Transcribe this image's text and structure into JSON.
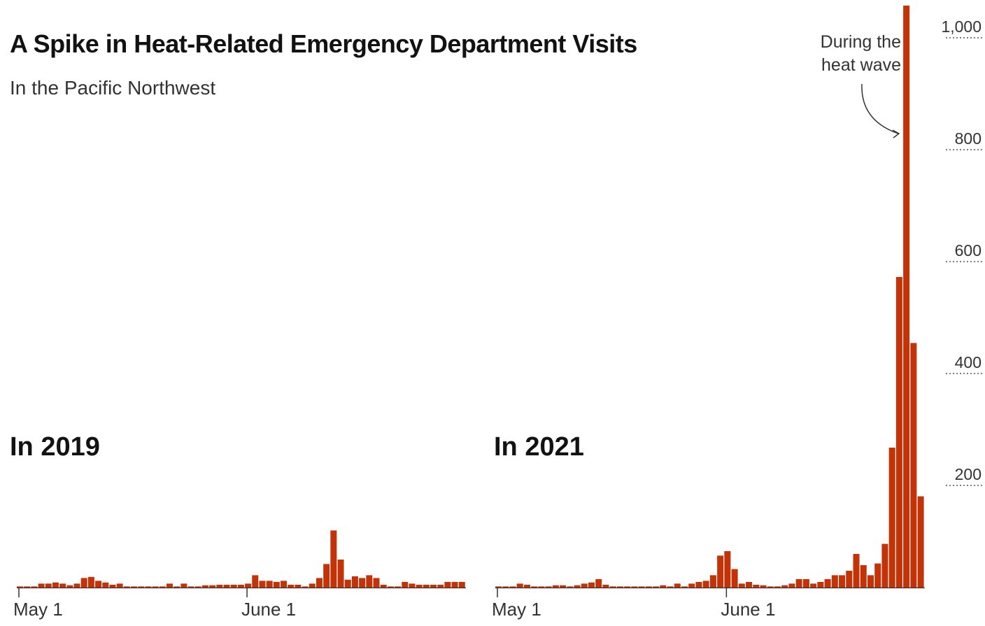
{
  "title": "A Spike in Heat-Related Emergency Department Visits",
  "subtitle": "In the Pacific Northwest",
  "annotation": [
    "During the",
    "heat wave"
  ],
  "colors": {
    "bar": "#c23308",
    "axis": "#333333",
    "grid": "#555555"
  },
  "chart_data": [
    {
      "type": "bar",
      "title": "In 2019",
      "x_ticks": [
        "May 1",
        "June 1"
      ],
      "ylim": [
        0,
        1040
      ],
      "values": [
        2,
        2,
        2,
        7,
        7,
        9,
        7,
        4,
        7,
        17,
        19,
        12,
        9,
        5,
        7,
        2,
        2,
        2,
        2,
        2,
        2,
        7,
        2,
        7,
        2,
        2,
        4,
        4,
        5,
        5,
        5,
        5,
        7,
        22,
        12,
        12,
        10,
        12,
        5,
        5,
        2,
        7,
        17,
        42,
        102,
        50,
        14,
        20,
        17,
        22,
        17,
        5,
        2,
        2,
        10,
        7,
        5,
        5,
        5,
        5,
        10,
        10,
        10
      ]
    },
    {
      "type": "bar",
      "title": "In 2021",
      "x_ticks": [
        "May 1",
        "June 1"
      ],
      "y_ticks": [
        200,
        400,
        600,
        800,
        1000
      ],
      "y_tick_labels": [
        "200",
        "400",
        "600",
        "800",
        "1,000"
      ],
      "ylim": [
        0,
        1040
      ],
      "values": [
        2,
        2,
        2,
        7,
        5,
        2,
        2,
        2,
        4,
        4,
        2,
        4,
        7,
        9,
        15,
        5,
        2,
        2,
        2,
        2,
        2,
        2,
        2,
        4,
        2,
        7,
        2,
        7,
        10,
        12,
        22,
        57,
        65,
        33,
        7,
        10,
        5,
        4,
        2,
        2,
        4,
        7,
        15,
        15,
        7,
        10,
        15,
        22,
        22,
        30,
        60,
        40,
        22,
        43,
        78,
        250,
        555,
        1040,
        437,
        163
      ]
    }
  ]
}
